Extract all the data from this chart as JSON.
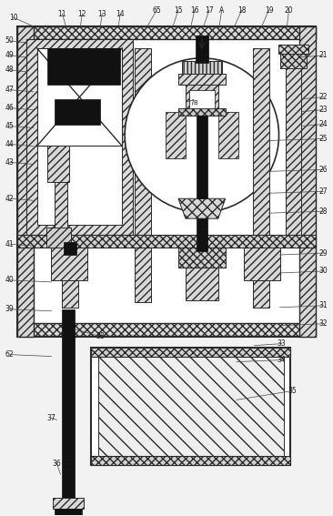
{
  "bg": "#f2f2f2",
  "lc": "#2a2a2a",
  "bk": "#111111",
  "wh": "#ffffff",
  "hc": "#e0e0e0",
  "fig_w": 3.66,
  "fig_h": 5.67,
  "dpi": 100
}
